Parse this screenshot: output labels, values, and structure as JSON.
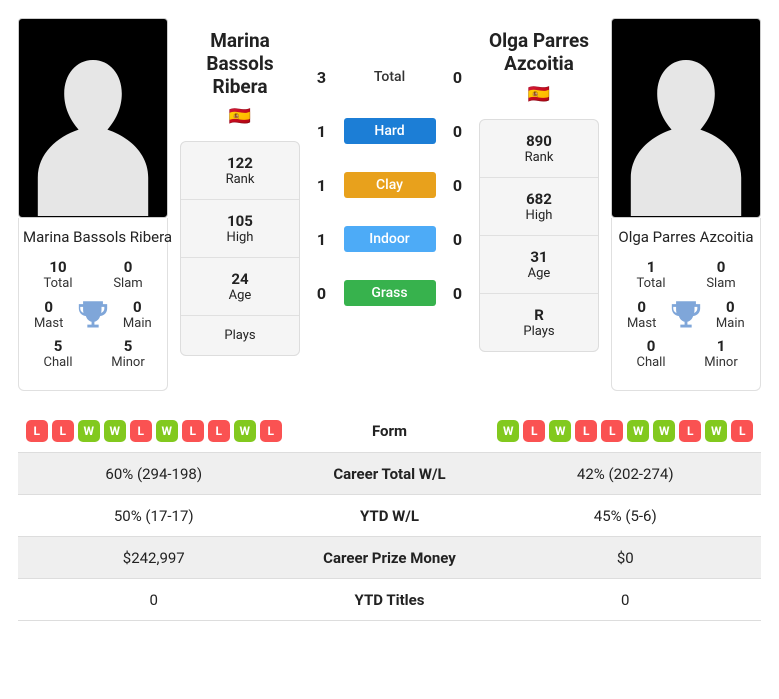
{
  "colors": {
    "hard": "#1c7ed6",
    "clay": "#e8a11c",
    "indoor": "#4dabf7",
    "grass": "#37b24d",
    "W": "#82c91e",
    "L": "#fa5252",
    "trophy": "#7fa6d9"
  },
  "left": {
    "name": "Marina Bassols Ribera",
    "flag": "🇪🇸",
    "rank": "122",
    "high": "105",
    "age": "24",
    "plays": "",
    "titles": {
      "Total": "10",
      "Slam": "0",
      "Mast": "0",
      "Main": "0",
      "Chall": "5",
      "Minor": "5"
    },
    "form": [
      "L",
      "L",
      "W",
      "W",
      "L",
      "W",
      "L",
      "L",
      "W",
      "L"
    ]
  },
  "right": {
    "name": "Olga Parres Azcoitia",
    "flag": "🇪🇸",
    "rank": "890",
    "high": "682",
    "age": "31",
    "plays": "R",
    "titles": {
      "Total": "1",
      "Slam": "0",
      "Mast": "0",
      "Main": "0",
      "Chall": "0",
      "Minor": "1"
    },
    "form": [
      "W",
      "L",
      "W",
      "L",
      "L",
      "W",
      "W",
      "L",
      "W",
      "L"
    ]
  },
  "center": {
    "total_label": "Total",
    "total": [
      "3",
      "0"
    ],
    "surfaces": [
      {
        "label": "Hard",
        "key": "hard",
        "l": "1",
        "r": "0"
      },
      {
        "label": "Clay",
        "key": "clay",
        "l": "1",
        "r": "0"
      },
      {
        "label": "Indoor",
        "key": "indoor",
        "l": "1",
        "r": "0"
      },
      {
        "label": "Grass",
        "key": "grass",
        "l": "0",
        "r": "0"
      }
    ]
  },
  "labels": {
    "Rank": "Rank",
    "High": "High",
    "Age": "Age",
    "Plays": "Plays",
    "Total": "Total",
    "Slam": "Slam",
    "Mast": "Mast",
    "Main": "Main",
    "Chall": "Chall",
    "Minor": "Minor"
  },
  "stats": [
    {
      "label": "Form"
    },
    {
      "label": "Career Total W/L",
      "l": "60% (294-198)",
      "r": "42% (202-274)"
    },
    {
      "label": "YTD W/L",
      "l": "50% (17-17)",
      "r": "45% (5-6)"
    },
    {
      "label": "Career Prize Money",
      "l": "$242,997",
      "r": "$0"
    },
    {
      "label": "YTD Titles",
      "l": "0",
      "r": "0"
    }
  ]
}
